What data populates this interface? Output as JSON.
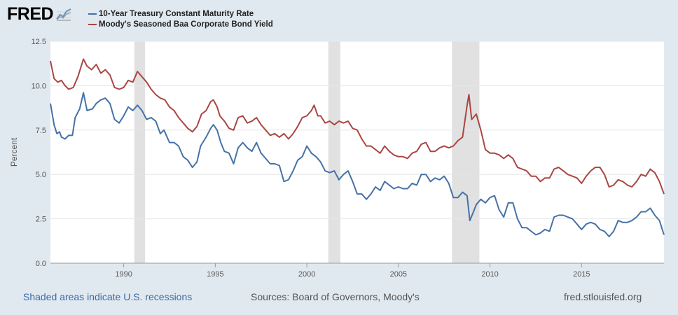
{
  "brand": {
    "logo_text": "FRED",
    "logo_icon": "line-chart-icon"
  },
  "legend": [
    {
      "label": "10-Year Treasury Constant Maturity Rate",
      "color": "#4572a7"
    },
    {
      "label": "Moody's Seasoned Baa Corporate Bond Yield",
      "color": "#aa4643"
    }
  ],
  "footer": {
    "recession_note": "Shaded areas indicate U.S. recessions",
    "sources": "Sources: Board of Governors, Moody's",
    "url": "fred.stlouisfed.org"
  },
  "chart_data": {
    "type": "line",
    "xlabel": "",
    "ylabel": "Percent",
    "xlim": [
      1986.0,
      2019.5
    ],
    "ylim": [
      0,
      12.5
    ],
    "yticks": [
      "0.0",
      "2.5",
      "5.0",
      "7.5",
      "10.0",
      "12.5"
    ],
    "xticks": [
      "1990",
      "1995",
      "2000",
      "2005",
      "2010",
      "2015"
    ],
    "grid": true,
    "recessions": [
      [
        1990.58,
        1991.17
      ],
      [
        2001.17,
        2001.83
      ],
      [
        2007.92,
        2009.42
      ]
    ],
    "series": [
      {
        "name": "10-Year Treasury Constant Maturity Rate",
        "color": "#4572a7",
        "points": [
          [
            1986.0,
            9.0
          ],
          [
            1986.2,
            7.8
          ],
          [
            1986.35,
            7.3
          ],
          [
            1986.5,
            7.4
          ],
          [
            1986.6,
            7.1
          ],
          [
            1986.8,
            7.0
          ],
          [
            1987.0,
            7.2
          ],
          [
            1987.2,
            7.2
          ],
          [
            1987.35,
            8.2
          ],
          [
            1987.6,
            8.7
          ],
          [
            1987.8,
            9.6
          ],
          [
            1988.0,
            8.6
          ],
          [
            1988.3,
            8.7
          ],
          [
            1988.5,
            9.0
          ],
          [
            1988.75,
            9.2
          ],
          [
            1989.0,
            9.3
          ],
          [
            1989.25,
            9.0
          ],
          [
            1989.5,
            8.1
          ],
          [
            1989.75,
            7.9
          ],
          [
            1990.0,
            8.3
          ],
          [
            1990.25,
            8.8
          ],
          [
            1990.5,
            8.6
          ],
          [
            1990.75,
            8.9
          ],
          [
            1991.0,
            8.6
          ],
          [
            1991.25,
            8.1
          ],
          [
            1991.5,
            8.2
          ],
          [
            1991.75,
            8.0
          ],
          [
            1992.0,
            7.3
          ],
          [
            1992.2,
            7.5
          ],
          [
            1992.5,
            6.8
          ],
          [
            1992.75,
            6.8
          ],
          [
            1993.0,
            6.6
          ],
          [
            1993.25,
            6.0
          ],
          [
            1993.5,
            5.8
          ],
          [
            1993.75,
            5.4
          ],
          [
            1994.0,
            5.7
          ],
          [
            1994.2,
            6.6
          ],
          [
            1994.5,
            7.1
          ],
          [
            1994.75,
            7.6
          ],
          [
            1994.9,
            7.8
          ],
          [
            1995.1,
            7.5
          ],
          [
            1995.3,
            6.8
          ],
          [
            1995.5,
            6.3
          ],
          [
            1995.75,
            6.2
          ],
          [
            1996.0,
            5.6
          ],
          [
            1996.25,
            6.5
          ],
          [
            1996.5,
            6.8
          ],
          [
            1996.75,
            6.5
          ],
          [
            1997.0,
            6.3
          ],
          [
            1997.25,
            6.8
          ],
          [
            1997.5,
            6.2
          ],
          [
            1997.75,
            5.9
          ],
          [
            1998.0,
            5.6
          ],
          [
            1998.25,
            5.6
          ],
          [
            1998.5,
            5.5
          ],
          [
            1998.75,
            4.6
          ],
          [
            1999.0,
            4.7
          ],
          [
            1999.25,
            5.2
          ],
          [
            1999.5,
            5.8
          ],
          [
            1999.75,
            6.0
          ],
          [
            2000.0,
            6.6
          ],
          [
            2000.25,
            6.2
          ],
          [
            2000.5,
            6.0
          ],
          [
            2000.75,
            5.7
          ],
          [
            2001.0,
            5.2
          ],
          [
            2001.25,
            5.1
          ],
          [
            2001.5,
            5.2
          ],
          [
            2001.75,
            4.7
          ],
          [
            2002.0,
            5.0
          ],
          [
            2002.25,
            5.2
          ],
          [
            2002.5,
            4.6
          ],
          [
            2002.75,
            3.9
          ],
          [
            2003.0,
            3.9
          ],
          [
            2003.25,
            3.6
          ],
          [
            2003.5,
            3.9
          ],
          [
            2003.75,
            4.3
          ],
          [
            2004.0,
            4.1
          ],
          [
            2004.25,
            4.6
          ],
          [
            2004.5,
            4.4
          ],
          [
            2004.75,
            4.2
          ],
          [
            2005.0,
            4.3
          ],
          [
            2005.25,
            4.2
          ],
          [
            2005.5,
            4.2
          ],
          [
            2005.75,
            4.5
          ],
          [
            2006.0,
            4.4
          ],
          [
            2006.25,
            5.0
          ],
          [
            2006.5,
            5.0
          ],
          [
            2006.75,
            4.6
          ],
          [
            2007.0,
            4.8
          ],
          [
            2007.25,
            4.7
          ],
          [
            2007.5,
            4.9
          ],
          [
            2007.75,
            4.5
          ],
          [
            2008.0,
            3.7
          ],
          [
            2008.25,
            3.7
          ],
          [
            2008.5,
            4.0
          ],
          [
            2008.75,
            3.8
          ],
          [
            2008.9,
            2.4
          ],
          [
            2009.1,
            2.9
          ],
          [
            2009.25,
            3.3
          ],
          [
            2009.5,
            3.6
          ],
          [
            2009.75,
            3.4
          ],
          [
            2010.0,
            3.7
          ],
          [
            2010.25,
            3.8
          ],
          [
            2010.5,
            3.0
          ],
          [
            2010.75,
            2.6
          ],
          [
            2011.0,
            3.4
          ],
          [
            2011.25,
            3.4
          ],
          [
            2011.5,
            2.5
          ],
          [
            2011.75,
            2.0
          ],
          [
            2012.0,
            2.0
          ],
          [
            2012.25,
            1.8
          ],
          [
            2012.5,
            1.6
          ],
          [
            2012.75,
            1.7
          ],
          [
            2013.0,
            1.9
          ],
          [
            2013.25,
            1.8
          ],
          [
            2013.5,
            2.6
          ],
          [
            2013.75,
            2.7
          ],
          [
            2014.0,
            2.7
          ],
          [
            2014.25,
            2.6
          ],
          [
            2014.5,
            2.5
          ],
          [
            2014.75,
            2.2
          ],
          [
            2015.0,
            1.9
          ],
          [
            2015.25,
            2.2
          ],
          [
            2015.5,
            2.3
          ],
          [
            2015.75,
            2.2
          ],
          [
            2016.0,
            1.9
          ],
          [
            2016.25,
            1.8
          ],
          [
            2016.5,
            1.5
          ],
          [
            2016.75,
            1.8
          ],
          [
            2017.0,
            2.4
          ],
          [
            2017.25,
            2.3
          ],
          [
            2017.5,
            2.3
          ],
          [
            2017.75,
            2.4
          ],
          [
            2018.0,
            2.6
          ],
          [
            2018.25,
            2.9
          ],
          [
            2018.5,
            2.9
          ],
          [
            2018.75,
            3.1
          ],
          [
            2019.0,
            2.7
          ],
          [
            2019.25,
            2.4
          ],
          [
            2019.5,
            1.6
          ]
        ]
      },
      {
        "name": "Moody's Seasoned Baa Corporate Bond Yield",
        "color": "#aa4643",
        "points": [
          [
            1986.0,
            11.4
          ],
          [
            1986.2,
            10.4
          ],
          [
            1986.4,
            10.2
          ],
          [
            1986.6,
            10.3
          ],
          [
            1986.8,
            10.0
          ],
          [
            1987.0,
            9.8
          ],
          [
            1987.25,
            9.9
          ],
          [
            1987.5,
            10.5
          ],
          [
            1987.8,
            11.5
          ],
          [
            1988.0,
            11.1
          ],
          [
            1988.25,
            10.9
          ],
          [
            1988.5,
            11.2
          ],
          [
            1988.75,
            10.7
          ],
          [
            1989.0,
            10.9
          ],
          [
            1989.25,
            10.6
          ],
          [
            1989.5,
            9.9
          ],
          [
            1989.75,
            9.8
          ],
          [
            1990.0,
            9.9
          ],
          [
            1990.25,
            10.3
          ],
          [
            1990.5,
            10.2
          ],
          [
            1990.75,
            10.8
          ],
          [
            1991.0,
            10.5
          ],
          [
            1991.25,
            10.2
          ],
          [
            1991.5,
            9.8
          ],
          [
            1991.75,
            9.5
          ],
          [
            1992.0,
            9.3
          ],
          [
            1992.25,
            9.2
          ],
          [
            1992.5,
            8.8
          ],
          [
            1992.75,
            8.6
          ],
          [
            1993.0,
            8.2
          ],
          [
            1993.25,
            7.9
          ],
          [
            1993.5,
            7.6
          ],
          [
            1993.75,
            7.4
          ],
          [
            1994.0,
            7.7
          ],
          [
            1994.25,
            8.4
          ],
          [
            1994.5,
            8.6
          ],
          [
            1994.75,
            9.1
          ],
          [
            1994.9,
            9.2
          ],
          [
            1995.1,
            8.8
          ],
          [
            1995.25,
            8.3
          ],
          [
            1995.5,
            8.0
          ],
          [
            1995.75,
            7.6
          ],
          [
            1996.0,
            7.5
          ],
          [
            1996.25,
            8.2
          ],
          [
            1996.5,
            8.3
          ],
          [
            1996.75,
            7.9
          ],
          [
            1997.0,
            8.0
          ],
          [
            1997.25,
            8.2
          ],
          [
            1997.5,
            7.8
          ],
          [
            1997.75,
            7.5
          ],
          [
            1998.0,
            7.2
          ],
          [
            1998.25,
            7.3
          ],
          [
            1998.5,
            7.1
          ],
          [
            1998.75,
            7.3
          ],
          [
            1999.0,
            7.0
          ],
          [
            1999.25,
            7.3
          ],
          [
            1999.5,
            7.7
          ],
          [
            1999.75,
            8.2
          ],
          [
            2000.0,
            8.3
          ],
          [
            2000.25,
            8.6
          ],
          [
            2000.4,
            8.9
          ],
          [
            2000.6,
            8.3
          ],
          [
            2000.75,
            8.3
          ],
          [
            2001.0,
            7.9
          ],
          [
            2001.25,
            8.0
          ],
          [
            2001.5,
            7.8
          ],
          [
            2001.75,
            8.0
          ],
          [
            2002.0,
            7.9
          ],
          [
            2002.25,
            8.0
          ],
          [
            2002.5,
            7.6
          ],
          [
            2002.75,
            7.5
          ],
          [
            2003.0,
            7.0
          ],
          [
            2003.25,
            6.6
          ],
          [
            2003.5,
            6.6
          ],
          [
            2003.75,
            6.4
          ],
          [
            2004.0,
            6.2
          ],
          [
            2004.25,
            6.6
          ],
          [
            2004.5,
            6.3
          ],
          [
            2004.75,
            6.1
          ],
          [
            2005.0,
            6.0
          ],
          [
            2005.25,
            6.0
          ],
          [
            2005.5,
            5.9
          ],
          [
            2005.75,
            6.2
          ],
          [
            2006.0,
            6.3
          ],
          [
            2006.25,
            6.7
          ],
          [
            2006.5,
            6.8
          ],
          [
            2006.75,
            6.3
          ],
          [
            2007.0,
            6.3
          ],
          [
            2007.25,
            6.5
          ],
          [
            2007.5,
            6.6
          ],
          [
            2007.75,
            6.5
          ],
          [
            2008.0,
            6.6
          ],
          [
            2008.25,
            6.9
          ],
          [
            2008.5,
            7.1
          ],
          [
            2008.75,
            8.9
          ],
          [
            2008.85,
            9.5
          ],
          [
            2009.0,
            8.1
          ],
          [
            2009.25,
            8.4
          ],
          [
            2009.5,
            7.5
          ],
          [
            2009.75,
            6.4
          ],
          [
            2010.0,
            6.2
          ],
          [
            2010.25,
            6.2
          ],
          [
            2010.5,
            6.1
          ],
          [
            2010.75,
            5.9
          ],
          [
            2011.0,
            6.1
          ],
          [
            2011.25,
            5.9
          ],
          [
            2011.5,
            5.4
          ],
          [
            2011.75,
            5.3
          ],
          [
            2012.0,
            5.2
          ],
          [
            2012.25,
            4.9
          ],
          [
            2012.5,
            4.9
          ],
          [
            2012.75,
            4.6
          ],
          [
            2013.0,
            4.8
          ],
          [
            2013.25,
            4.8
          ],
          [
            2013.5,
            5.3
          ],
          [
            2013.75,
            5.4
          ],
          [
            2014.0,
            5.2
          ],
          [
            2014.25,
            5.0
          ],
          [
            2014.5,
            4.9
          ],
          [
            2014.75,
            4.8
          ],
          [
            2015.0,
            4.5
          ],
          [
            2015.25,
            4.9
          ],
          [
            2015.5,
            5.2
          ],
          [
            2015.75,
            5.4
          ],
          [
            2016.0,
            5.4
          ],
          [
            2016.25,
            5.0
          ],
          [
            2016.5,
            4.3
          ],
          [
            2016.75,
            4.4
          ],
          [
            2017.0,
            4.7
          ],
          [
            2017.25,
            4.6
          ],
          [
            2017.5,
            4.4
          ],
          [
            2017.75,
            4.3
          ],
          [
            2018.0,
            4.6
          ],
          [
            2018.25,
            5.0
          ],
          [
            2018.5,
            4.9
          ],
          [
            2018.75,
            5.3
          ],
          [
            2019.0,
            5.1
          ],
          [
            2019.25,
            4.6
          ],
          [
            2019.5,
            3.9
          ]
        ]
      }
    ]
  }
}
